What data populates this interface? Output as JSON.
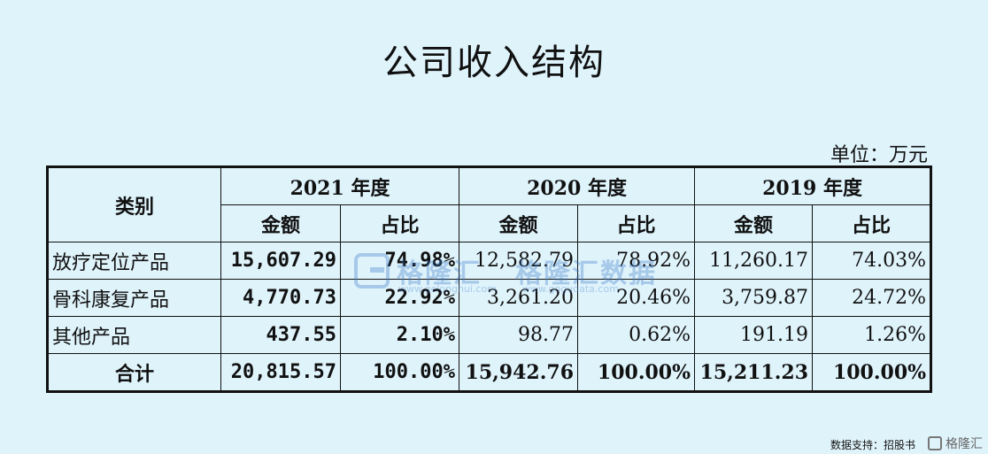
{
  "title": "公司收入结构",
  "unit": "单位：万元",
  "table": {
    "category_header": "类别",
    "years": [
      "2021 年度",
      "2020 年度",
      "2019 年度"
    ],
    "sub_headers": {
      "amount": "金额",
      "ratio": "占比"
    },
    "rows": [
      {
        "category": "放疗定位产品",
        "v2021": "15,607.29",
        "r2021": "74.98%",
        "v2020": "12,582.79",
        "r2020": "78.92%",
        "v2019": "11,260.17",
        "r2019": "74.03%"
      },
      {
        "category": "骨科康复产品",
        "v2021": "4,770.73",
        "r2021": "22.92%",
        "v2020": "3,261.20",
        "r2020": "20.46%",
        "v2019": "3,759.87",
        "r2019": "24.72%"
      },
      {
        "category": "其他产品",
        "v2021": "437.55",
        "r2021": "2.10%",
        "v2020": "98.77",
        "r2020": "0.62%",
        "v2019": "191.19",
        "r2019": "1.26%"
      },
      {
        "category": "合计",
        "v2021": "20,815.57",
        "r2021": "100.00%",
        "v2020": "15,942.76",
        "r2020": "100.00%",
        "v2019": "15,211.23",
        "r2019": "100.00%"
      }
    ]
  },
  "watermark": {
    "text1": "格隆汇",
    "sub1": "www.gelonghui.com",
    "text2": "格隆汇数据",
    "sub2": "www.gogudata.com"
  },
  "footer": {
    "source": "数据支持：招股书",
    "brand": "格隆汇"
  }
}
